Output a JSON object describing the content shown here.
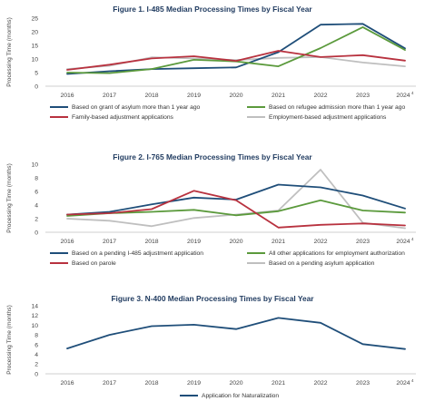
{
  "colors": {
    "navy": "#1f4e79",
    "green": "#5b9a3c",
    "red": "#b8323f",
    "gray": "#bfbfbf"
  },
  "chart_data": [
    {
      "type": "line",
      "title": "Figure 1. I-485 Median Processing Times by Fiscal Year",
      "ylabel": "Processing Time (months)",
      "categories": [
        "2016",
        "2017",
        "2018",
        "2019",
        "2020",
        "2021",
        "2022",
        "2023",
        "2024"
      ],
      "x_superscript_last": "4",
      "ylim": [
        0,
        25
      ],
      "yticks": [
        0,
        5,
        10,
        15,
        20,
        25
      ],
      "grid": false,
      "legend_position": "bottom",
      "series": [
        {
          "name": "Based on grant of asylum more than 1 year ago",
          "color": "#1f4e79",
          "values": [
            4.5,
            5.5,
            6.3,
            6.6,
            6.9,
            12.5,
            22.6,
            22.9,
            13.9
          ]
        },
        {
          "name": "Based on refugee admission more than 1 year ago",
          "color": "#5b9a3c",
          "values": [
            5.0,
            4.8,
            6.3,
            9.7,
            9.1,
            7.3,
            14.0,
            21.7,
            13.3
          ]
        },
        {
          "name": "Family-based adjustment applications",
          "color": "#b8323f",
          "values": [
            6.0,
            7.9,
            10.2,
            11.0,
            9.3,
            13.0,
            10.7,
            11.4,
            9.4
          ]
        },
        {
          "name": "Employment-based adjustment applications",
          "color": "#bfbfbf",
          "values": [
            6.3,
            7.5,
            10.6,
            10.2,
            9.6,
            10.4,
            10.7,
            8.7,
            7.3
          ]
        }
      ]
    },
    {
      "type": "line",
      "title": "Figure 2. I-765 Median Processing Times by Fiscal Year",
      "ylabel": "Processing Time (months)",
      "categories": [
        "2016",
        "2017",
        "2018",
        "2019",
        "2020",
        "2021",
        "2022",
        "2023",
        "2024"
      ],
      "x_superscript_last": "4",
      "ylim": [
        0,
        10
      ],
      "yticks": [
        0,
        2,
        4,
        6,
        8,
        10
      ],
      "grid": false,
      "legend_position": "bottom",
      "series": [
        {
          "name": "Based on a pending I-485 adjustment application",
          "color": "#1f4e79",
          "values": [
            2.6,
            3.0,
            4.1,
            5.1,
            4.8,
            7.0,
            6.6,
            5.4,
            3.5
          ]
        },
        {
          "name": "All other applications for employment authorization",
          "color": "#5b9a3c",
          "values": [
            2.4,
            2.8,
            3.0,
            3.3,
            2.5,
            3.1,
            4.7,
            3.2,
            2.9
          ]
        },
        {
          "name": "Based on parole",
          "color": "#b8323f",
          "values": [
            2.6,
            2.8,
            3.4,
            6.1,
            4.7,
            0.7,
            1.1,
            1.3,
            1.0
          ]
        },
        {
          "name": "Based on a pending asylum application",
          "color": "#bfbfbf",
          "values": [
            2.0,
            1.7,
            0.9,
            2.1,
            2.6,
            3.2,
            9.2,
            1.4,
            0.6
          ]
        }
      ]
    },
    {
      "type": "line",
      "title": "Figure 3. N-400 Median Processing Times by Fiscal Year",
      "ylabel": "Processing Time (months)",
      "categories": [
        "2016",
        "2017",
        "2018",
        "2019",
        "2020",
        "2021",
        "2022",
        "2023",
        "2024"
      ],
      "x_superscript_last": "4",
      "ylim": [
        0,
        14
      ],
      "yticks": [
        0,
        2,
        4,
        6,
        8,
        10,
        12,
        14
      ],
      "grid": false,
      "legend_position": "bottom",
      "series": [
        {
          "name": "Application for Naturalization",
          "color": "#1f4e79",
          "values": [
            5.2,
            8.0,
            9.8,
            10.1,
            9.2,
            11.5,
            10.5,
            6.1,
            5.1
          ]
        }
      ]
    }
  ]
}
